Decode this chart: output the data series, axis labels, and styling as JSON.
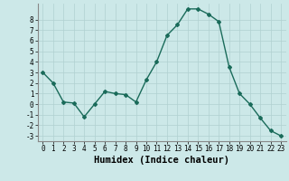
{
  "x": [
    0,
    1,
    2,
    3,
    4,
    5,
    6,
    7,
    8,
    9,
    10,
    11,
    12,
    13,
    14,
    15,
    16,
    17,
    18,
    19,
    20,
    21,
    22,
    23
  ],
  "y": [
    3,
    2,
    0.2,
    0.1,
    -1.2,
    0,
    1.2,
    1.0,
    0.9,
    0.2,
    2.3,
    4.0,
    6.5,
    7.5,
    9.0,
    9.0,
    8.5,
    7.8,
    3.5,
    1.0,
    0.0,
    -1.3,
    -2.5,
    -3.0
  ],
  "line_color": "#1a6b5a",
  "marker": "D",
  "marker_size": 2,
  "bg_color": "#cce8e8",
  "grid_color": "#b0d0d0",
  "xlabel": "Humidex (Indice chaleur)",
  "xlim": [
    -0.5,
    23.5
  ],
  "ylim": [
    -3.5,
    9.5
  ],
  "yticks": [
    -3,
    -2,
    -1,
    0,
    1,
    2,
    3,
    4,
    5,
    6,
    7,
    8
  ],
  "xticks": [
    0,
    1,
    2,
    3,
    4,
    5,
    6,
    7,
    8,
    9,
    10,
    11,
    12,
    13,
    14,
    15,
    16,
    17,
    18,
    19,
    20,
    21,
    22,
    23
  ],
  "tick_label_fontsize": 5.5,
  "xlabel_fontsize": 7.5,
  "line_width": 1.0
}
